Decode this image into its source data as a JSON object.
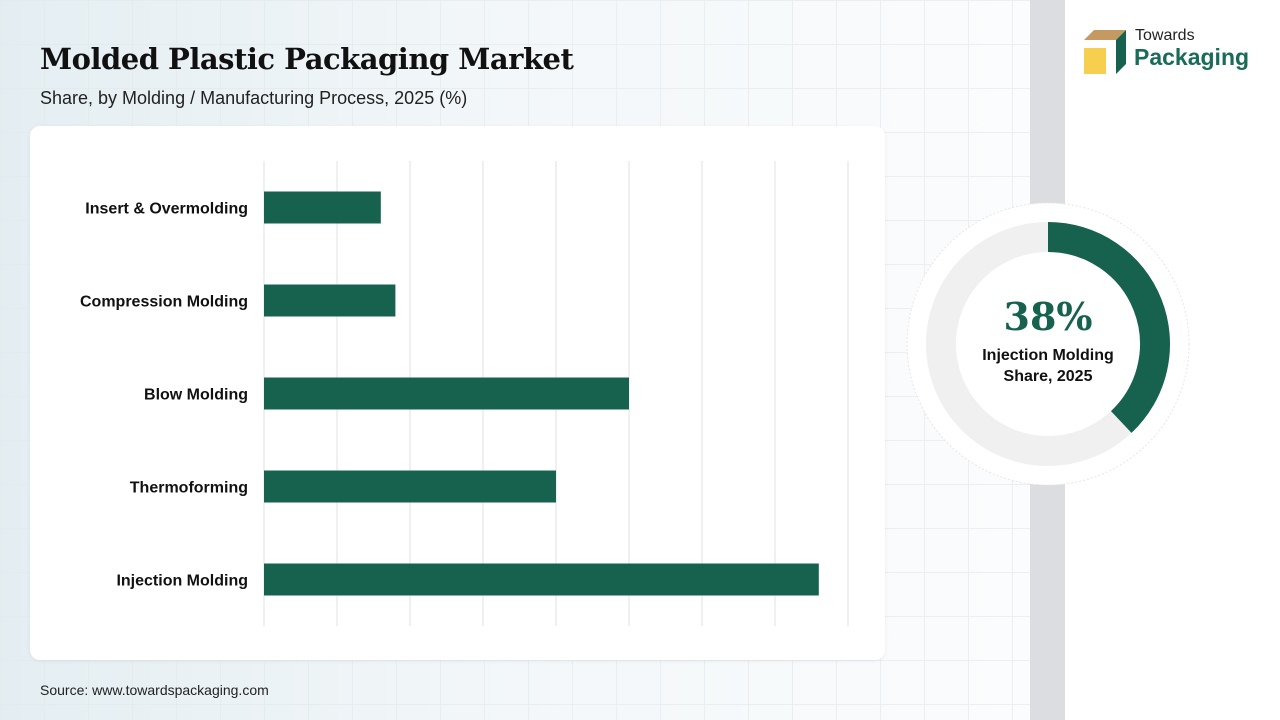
{
  "title": "Molded Plastic Packaging Market",
  "subtitle": "Share, by Molding / Manufacturing Process, 2025 (%)",
  "source": "Source: www.towardspackaging.com",
  "logo": {
    "line1": "Towards",
    "line2": "Packaging"
  },
  "colors": {
    "bar": "#17614f",
    "donut_rest": "#f0f0f0",
    "grid": "#e2e2e2"
  },
  "chart_data": [
    {
      "type": "bar",
      "orientation": "horizontal",
      "categories": [
        "Insert & Overmolding",
        "Compression Molding",
        "Blow Molding",
        "Thermoforming",
        "Injection Molding"
      ],
      "values": [
        8,
        9,
        25,
        20,
        38
      ],
      "xlim": [
        0,
        40
      ],
      "grid": true,
      "unit": "%"
    },
    {
      "type": "pie",
      "style": "donut",
      "value": 38,
      "value_label": "38%",
      "label_line1": "Injection Molding",
      "label_line2": "Share, 2025"
    }
  ]
}
